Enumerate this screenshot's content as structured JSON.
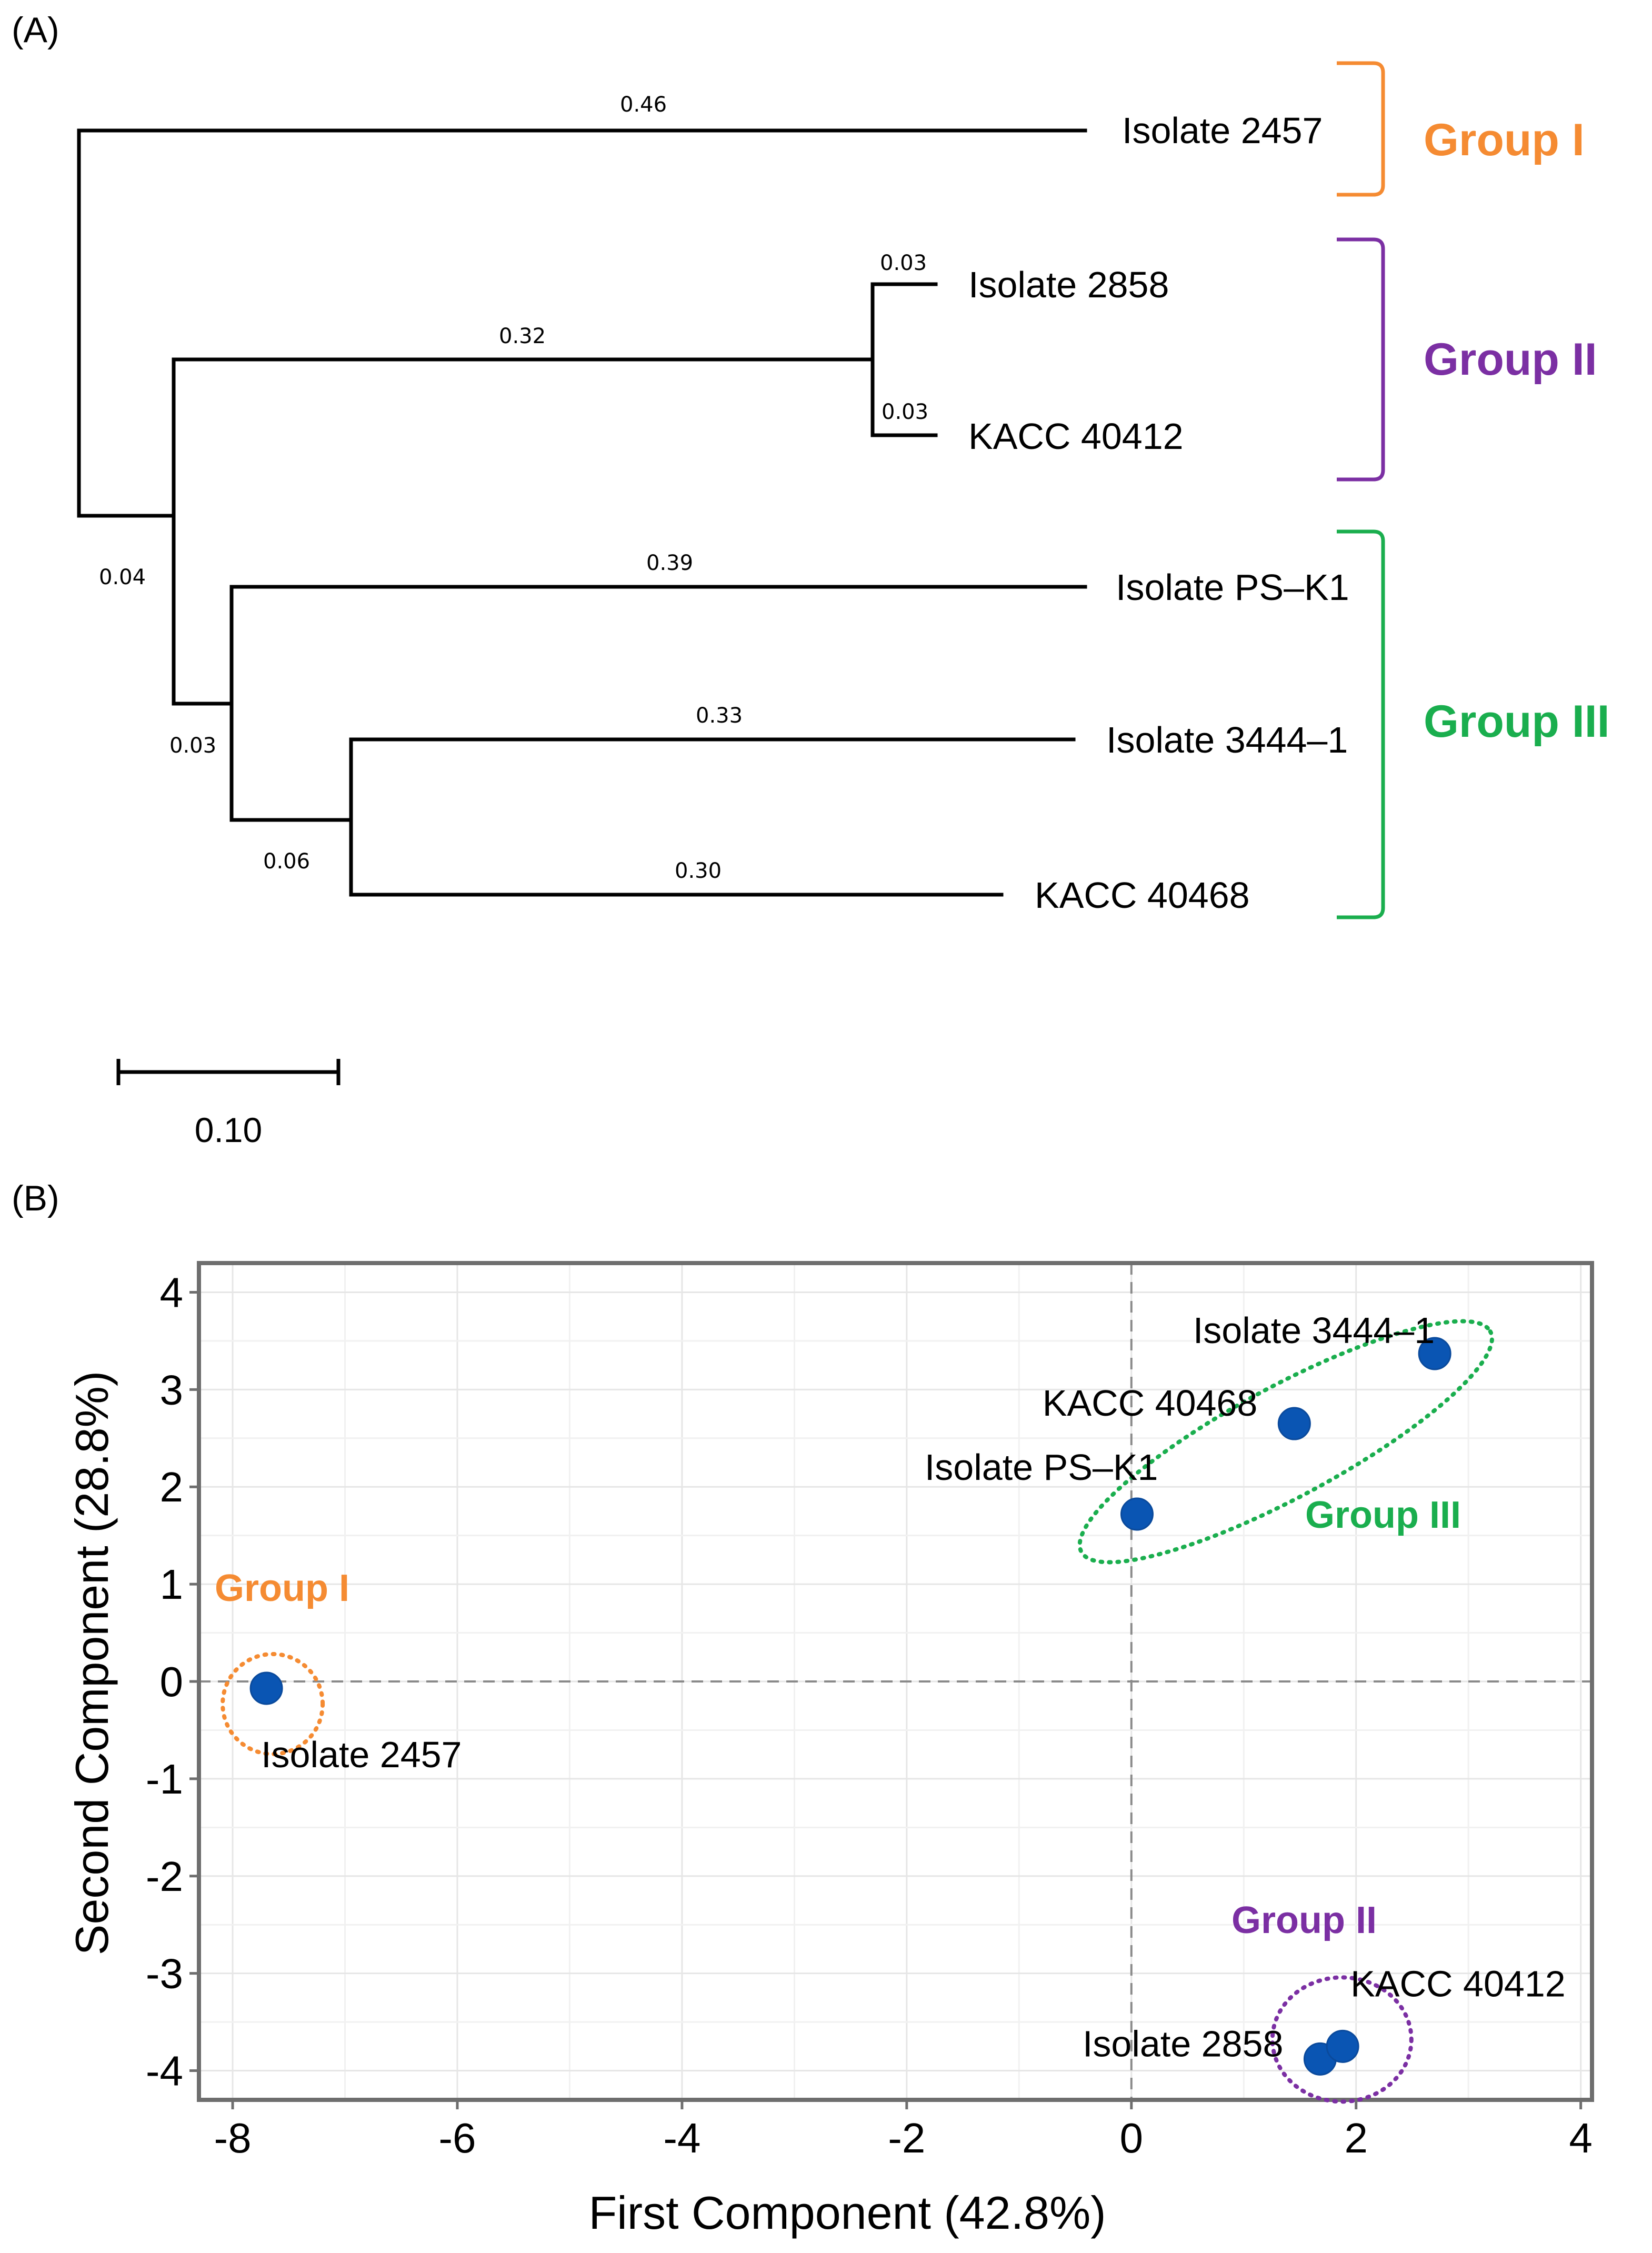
{
  "chart_data": [
    {
      "type": "dendrogram",
      "panel_label": "(A)",
      "scale_bar_label": "0.10",
      "scale_bar_value": 0.1,
      "leaves": [
        {
          "id": "i2457",
          "label": "Isolate 2457",
          "branch": "0.46",
          "length": 0.46
        },
        {
          "id": "i2858",
          "label": "Isolate 2858",
          "branch": "0.03",
          "length": 0.03
        },
        {
          "id": "k40412",
          "label": "KACC 40412",
          "branch": "0.03",
          "length": 0.03
        },
        {
          "id": "ipsk1",
          "label": "Isolate PS–K1",
          "branch": "0.39",
          "length": 0.39
        },
        {
          "id": "i3444",
          "label": "Isolate 3444–1",
          "branch": "0.33",
          "length": 0.33
        },
        {
          "id": "k40468",
          "label": "KACC 40468",
          "branch": "0.30",
          "length": 0.3
        }
      ],
      "internal_branches": [
        {
          "id": "g2",
          "label": "0.32",
          "length": 0.32
        },
        {
          "id": "n1",
          "label": "0.04",
          "length": 0.04
        },
        {
          "id": "n2",
          "label": "0.03",
          "length": 0.03
        },
        {
          "id": "n3",
          "label": "0.06",
          "length": 0.06
        }
      ],
      "groups": [
        {
          "name": "Group I",
          "color": "#f58b32",
          "members": [
            "Isolate 2457"
          ]
        },
        {
          "name": "Group II",
          "color": "#7b2fa3",
          "members": [
            "Isolate 2858",
            "KACC 40412"
          ]
        },
        {
          "name": "Group III",
          "color": "#1aae4e",
          "members": [
            "Isolate PS–K1",
            "Isolate 3444–1",
            "KACC 40468"
          ]
        }
      ]
    },
    {
      "type": "scatter",
      "panel_label": "(B)",
      "xlabel": "First Component (42.8%)",
      "ylabel": "Second Component (28.8%)",
      "xlim": [
        -8.3,
        4.1
      ],
      "ylim": [
        -4.3,
        4.3
      ],
      "xticks": [
        "-8",
        "-6",
        "-4",
        "-2",
        "0",
        "2",
        "4"
      ],
      "yticks": [
        "4",
        "3",
        "2",
        "1",
        "0",
        "-1",
        "-2",
        "-3",
        "-4"
      ],
      "grid": true,
      "point_color": "#0a55b3",
      "points": [
        {
          "label": "Isolate 2457",
          "x": -7.7,
          "y": -0.07,
          "group": "Group I"
        },
        {
          "label": "Isolate PS–K1",
          "x": 0.05,
          "y": 1.72,
          "group": "Group III"
        },
        {
          "label": "KACC 40468",
          "x": 1.45,
          "y": 2.65,
          "group": "Group III"
        },
        {
          "label": "Isolate 3444–1",
          "x": 2.7,
          "y": 3.37,
          "group": "Group III"
        },
        {
          "label": "Isolate 2858",
          "x": 1.68,
          "y": -3.88,
          "group": "Group II"
        },
        {
          "label": "KACC 40412",
          "x": 1.88,
          "y": -3.75,
          "group": "Group II"
        }
      ],
      "groups": [
        {
          "name": "Group I",
          "color": "#f58b32"
        },
        {
          "name": "Group II",
          "color": "#7b2fa3"
        },
        {
          "name": "Group III",
          "color": "#1aae4e"
        }
      ]
    }
  ]
}
